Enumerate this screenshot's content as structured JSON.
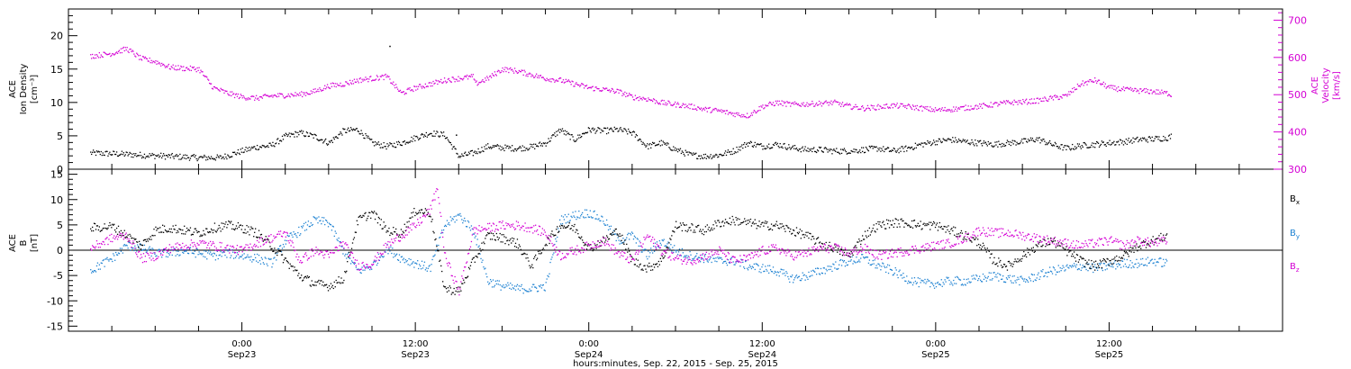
{
  "chart_data": [
    {
      "type": "scatter",
      "panel": "ace-density-velocity",
      "ylabel_lines": [
        "ACE",
        "Ion Density",
        "[cm⁻³]"
      ],
      "ylim": [
        0,
        24
      ],
      "yticks": [
        0,
        5,
        10,
        15,
        20
      ],
      "y2label_lines": [
        "ACE",
        "Velocity",
        "[km/s]"
      ],
      "y2lim": [
        300,
        730
      ],
      "y2ticks": [
        300,
        400,
        500,
        600,
        700
      ],
      "series": [
        {
          "name": "",
          "color": "#000000",
          "axis": "left",
          "x": [
            -10.5,
            -9,
            -7,
            -5,
            -3,
            -1.5,
            0,
            1,
            2,
            3,
            4,
            5,
            6,
            7,
            8,
            9,
            10,
            11,
            12,
            13,
            14,
            15,
            16,
            17,
            18,
            19,
            20,
            21,
            22,
            23,
            24,
            25,
            26,
            27,
            28,
            29,
            30,
            31,
            32,
            33,
            34,
            35,
            36,
            37,
            38,
            39,
            40,
            41,
            42,
            43,
            44,
            45,
            46,
            47,
            48,
            49,
            50,
            51,
            52,
            53,
            54,
            55,
            56,
            57,
            58,
            59,
            60,
            61,
            62,
            63,
            64,
            64.3
          ],
          "y": [
            2.5,
            2.4,
            2.2,
            2.0,
            1.8,
            1.8,
            2.8,
            3.4,
            3.6,
            5.0,
            5.5,
            5.0,
            4.0,
            5.8,
            6.0,
            4.0,
            3.5,
            4.0,
            4.8,
            5.5,
            5.2,
            2.0,
            2.5,
            3.5,
            3.3,
            3.2,
            3.4,
            4.0,
            6.0,
            4.5,
            6.0,
            5.8,
            6.0,
            5.5,
            3.5,
            4.0,
            3.0,
            2.2,
            2.0,
            2.2,
            2.8,
            4.0,
            3.5,
            3.8,
            3.3,
            3.0,
            3.0,
            2.8,
            2.8,
            3.0,
            3.2,
            2.8,
            3.2,
            3.8,
            4.2,
            4.5,
            4.2,
            4.0,
            3.8,
            4.0,
            4.2,
            4.6,
            3.8,
            3.2,
            3.6,
            3.8,
            4.0,
            4.2,
            4.5,
            4.6,
            4.8,
            5.0
          ]
        },
        {
          "name": "",
          "color": "#d400d4",
          "axis": "right",
          "x": [
            -10.5,
            -9,
            -8,
            -7,
            -6,
            -5,
            -4,
            -3,
            -2,
            -1,
            0,
            1,
            2,
            3,
            4,
            5,
            6,
            7,
            8,
            9,
            10,
            11,
            12,
            13,
            14,
            15,
            16,
            16.1,
            17,
            18,
            19,
            20,
            21,
            22,
            23,
            24,
            25,
            26,
            27,
            28,
            29,
            30,
            31,
            32,
            33,
            34,
            35,
            36,
            37,
            38,
            39,
            40,
            41,
            42,
            43,
            44,
            45,
            46,
            47,
            48,
            49,
            50,
            51,
            52,
            53,
            54,
            55,
            56,
            57,
            58,
            59,
            60,
            61,
            62,
            63,
            64,
            64.3
          ],
          "y": [
            605,
            612,
            625,
            598,
            590,
            575,
            572,
            570,
            520,
            505,
            495,
            492,
            498,
            500,
            502,
            510,
            525,
            530,
            540,
            545,
            550,
            505,
            520,
            530,
            540,
            545,
            550,
            530,
            545,
            570,
            565,
            555,
            545,
            540,
            530,
            520,
            515,
            510,
            495,
            490,
            480,
            475,
            470,
            462,
            458,
            450,
            445,
            470,
            480,
            475,
            476,
            478,
            480,
            470,
            465,
            468,
            472,
            470,
            465,
            460,
            462,
            466,
            470,
            475,
            480,
            482,
            485,
            492,
            498,
            530,
            540,
            520,
            515,
            512,
            510,
            505,
            502
          ]
        },
        {
          "name": "",
          "color": "#000000",
          "axis": "left",
          "style": "outlier",
          "x": [
            10.2,
            14.8
          ],
          "y": [
            18.5,
            5.2
          ]
        }
      ]
    },
    {
      "type": "scatter",
      "panel": "ace-magnetic-field",
      "ylabel_lines": [
        "ACE",
        "B",
        "[nT]"
      ],
      "ylim": [
        -16,
        16
      ],
      "yticks": [
        -15,
        -10,
        -5,
        0,
        5,
        10,
        15
      ],
      "zero_line": true,
      "series": [
        {
          "name": "Bx",
          "label": "B",
          "sub": "x",
          "color": "#000000",
          "x": [
            -10.5,
            -9,
            -8,
            -7,
            -6,
            -5,
            -4,
            -3,
            -2,
            -1,
            0,
            1,
            2,
            3,
            4,
            5,
            6,
            7,
            8,
            9,
            10,
            11,
            12,
            13,
            14,
            15,
            16,
            17,
            18,
            19,
            20,
            21,
            22,
            23,
            24,
            25,
            26,
            27,
            28,
            29,
            30,
            31,
            32,
            33,
            34,
            35,
            36,
            37,
            38,
            39,
            40,
            41,
            42,
            43,
            44,
            45,
            46,
            47,
            48,
            49,
            50,
            51,
            52,
            53,
            54,
            55,
            56,
            57,
            58,
            59,
            60,
            61,
            62,
            63,
            64
          ],
          "y": [
            4.5,
            4.8,
            3.0,
            1.0,
            4.0,
            4.5,
            4.0,
            3.5,
            4.5,
            5.0,
            4.5,
            3.5,
            1.0,
            -2.0,
            -5.0,
            -6.5,
            -7.0,
            -5.5,
            6.0,
            7.5,
            4.0,
            3.5,
            8.0,
            7.5,
            -7.5,
            -8.0,
            -2.0,
            3.0,
            2.5,
            1.5,
            -3.0,
            1.5,
            5.0,
            4.5,
            0.5,
            2.0,
            4.0,
            -2.0,
            -3.5,
            -2.0,
            5.0,
            4.5,
            4.0,
            5.5,
            6.0,
            5.5,
            5.0,
            5.0,
            4.0,
            3.0,
            1.5,
            0.5,
            -1.0,
            3.0,
            5.0,
            5.5,
            5.5,
            5.0,
            5.0,
            4.0,
            3.0,
            1.5,
            -2.0,
            -3.0,
            -1.0,
            1.0,
            2.0,
            0.0,
            -2.0,
            -3.0,
            -2.0,
            -1.0,
            1.0,
            2.0,
            3.0
          ]
        },
        {
          "name": "By",
          "label": "B",
          "sub": "y",
          "color": "#1e82d2",
          "x": [
            -10.5,
            -9,
            -8,
            -7,
            -6,
            -5,
            -4,
            -3,
            -2,
            -1,
            0,
            1,
            2,
            3,
            4,
            5,
            6,
            7,
            8,
            9,
            10,
            11,
            12,
            13,
            14,
            15,
            16,
            17,
            18,
            19,
            20,
            21,
            22,
            23,
            24,
            25,
            26,
            27,
            28,
            29,
            30,
            31,
            32,
            33,
            34,
            35,
            36,
            37,
            38,
            39,
            40,
            41,
            42,
            43,
            44,
            45,
            46,
            47,
            48,
            49,
            50,
            51,
            52,
            53,
            54,
            55,
            56,
            57,
            58,
            59,
            60,
            61,
            62,
            63,
            64
          ],
          "y": [
            -4.0,
            -1.5,
            1.0,
            0.5,
            -0.5,
            -0.5,
            0.0,
            -0.5,
            -1.0,
            -0.5,
            -1.0,
            -1.5,
            -2.5,
            2.0,
            4.0,
            6.0,
            5.5,
            0.0,
            -4.0,
            -3.0,
            0.5,
            -1.5,
            -2.5,
            -3.5,
            5.0,
            7.0,
            4.0,
            -6.0,
            -7.0,
            -7.5,
            -7.5,
            -7.0,
            6.0,
            7.0,
            7.5,
            6.0,
            2.0,
            3.0,
            -1.0,
            2.0,
            0.0,
            -1.0,
            -1.5,
            -2.0,
            -2.0,
            -3.0,
            -3.5,
            -4.0,
            -5.5,
            -5.0,
            -4.0,
            -3.0,
            -2.0,
            -1.5,
            -3.0,
            -4.0,
            -5.5,
            -6.5,
            -6.5,
            -6.0,
            -6.0,
            -5.5,
            -5.0,
            -5.5,
            -6.0,
            -5.0,
            -4.0,
            -3.5,
            -3.0,
            -3.5,
            -3.0,
            -2.5,
            -2.5,
            -2.0,
            -2.5
          ]
        },
        {
          "name": "Bz",
          "label": "B",
          "sub": "z",
          "color": "#d400d4",
          "x": [
            -10.5,
            -9,
            -8,
            -7,
            -6,
            -5,
            -4,
            -3,
            -2,
            -1,
            0,
            1,
            2,
            3,
            4,
            5,
            6,
            7,
            8,
            9,
            10,
            11,
            12,
            13,
            13.5,
            14,
            15,
            16,
            17,
            18,
            19,
            20,
            21,
            22,
            23,
            24,
            25,
            26,
            27,
            28,
            29,
            30,
            31,
            32,
            33,
            34,
            35,
            36,
            37,
            38,
            39,
            40,
            41,
            42,
            43,
            44,
            45,
            46,
            47,
            48,
            49,
            50,
            51,
            52,
            53,
            54,
            55,
            56,
            57,
            58,
            59,
            60,
            61,
            62,
            63,
            64
          ],
          "y": [
            0.5,
            2.5,
            3.0,
            -1.5,
            -1.0,
            0.5,
            1.0,
            1.5,
            1.0,
            0.5,
            0.0,
            1.5,
            2.5,
            3.5,
            -2.0,
            0.0,
            -1.0,
            1.5,
            -3.0,
            -2.5,
            1.0,
            3.0,
            5.0,
            8.0,
            12.5,
            -1.0,
            -8.0,
            4.0,
            4.5,
            5.0,
            5.0,
            4.5,
            3.5,
            -1.0,
            0.0,
            1.0,
            2.0,
            -0.5,
            -2.0,
            3.0,
            0.0,
            -1.5,
            -2.0,
            -1.0,
            0.0,
            -2.0,
            -1.5,
            0.0,
            0.5,
            -1.0,
            -0.5,
            0.5,
            0.5,
            -0.5,
            0.5,
            -1.0,
            -0.5,
            0.0,
            0.5,
            1.0,
            1.5,
            2.5,
            4.0,
            3.5,
            3.5,
            3.0,
            2.5,
            2.0,
            1.5,
            1.0,
            1.5,
            2.0,
            1.0,
            2.0,
            1.5,
            2.0
          ]
        }
      ]
    }
  ],
  "x_axis": {
    "min": -12,
    "max": 72,
    "tick_hours": [
      0,
      12,
      24,
      36,
      48,
      60,
      72
    ],
    "tick_labels": [
      [
        "0:00",
        "Sep23"
      ],
      [
        "12:00",
        "Sep23"
      ],
      [
        "0:00",
        "Sep24"
      ],
      [
        "12:00",
        "Sep24"
      ],
      [
        "0:00",
        "Sep25"
      ],
      [
        "12:00",
        "Sep25"
      ]
    ],
    "title": "hours:minutes, Sep. 22, 2015 - Sep. 25, 2015"
  }
}
